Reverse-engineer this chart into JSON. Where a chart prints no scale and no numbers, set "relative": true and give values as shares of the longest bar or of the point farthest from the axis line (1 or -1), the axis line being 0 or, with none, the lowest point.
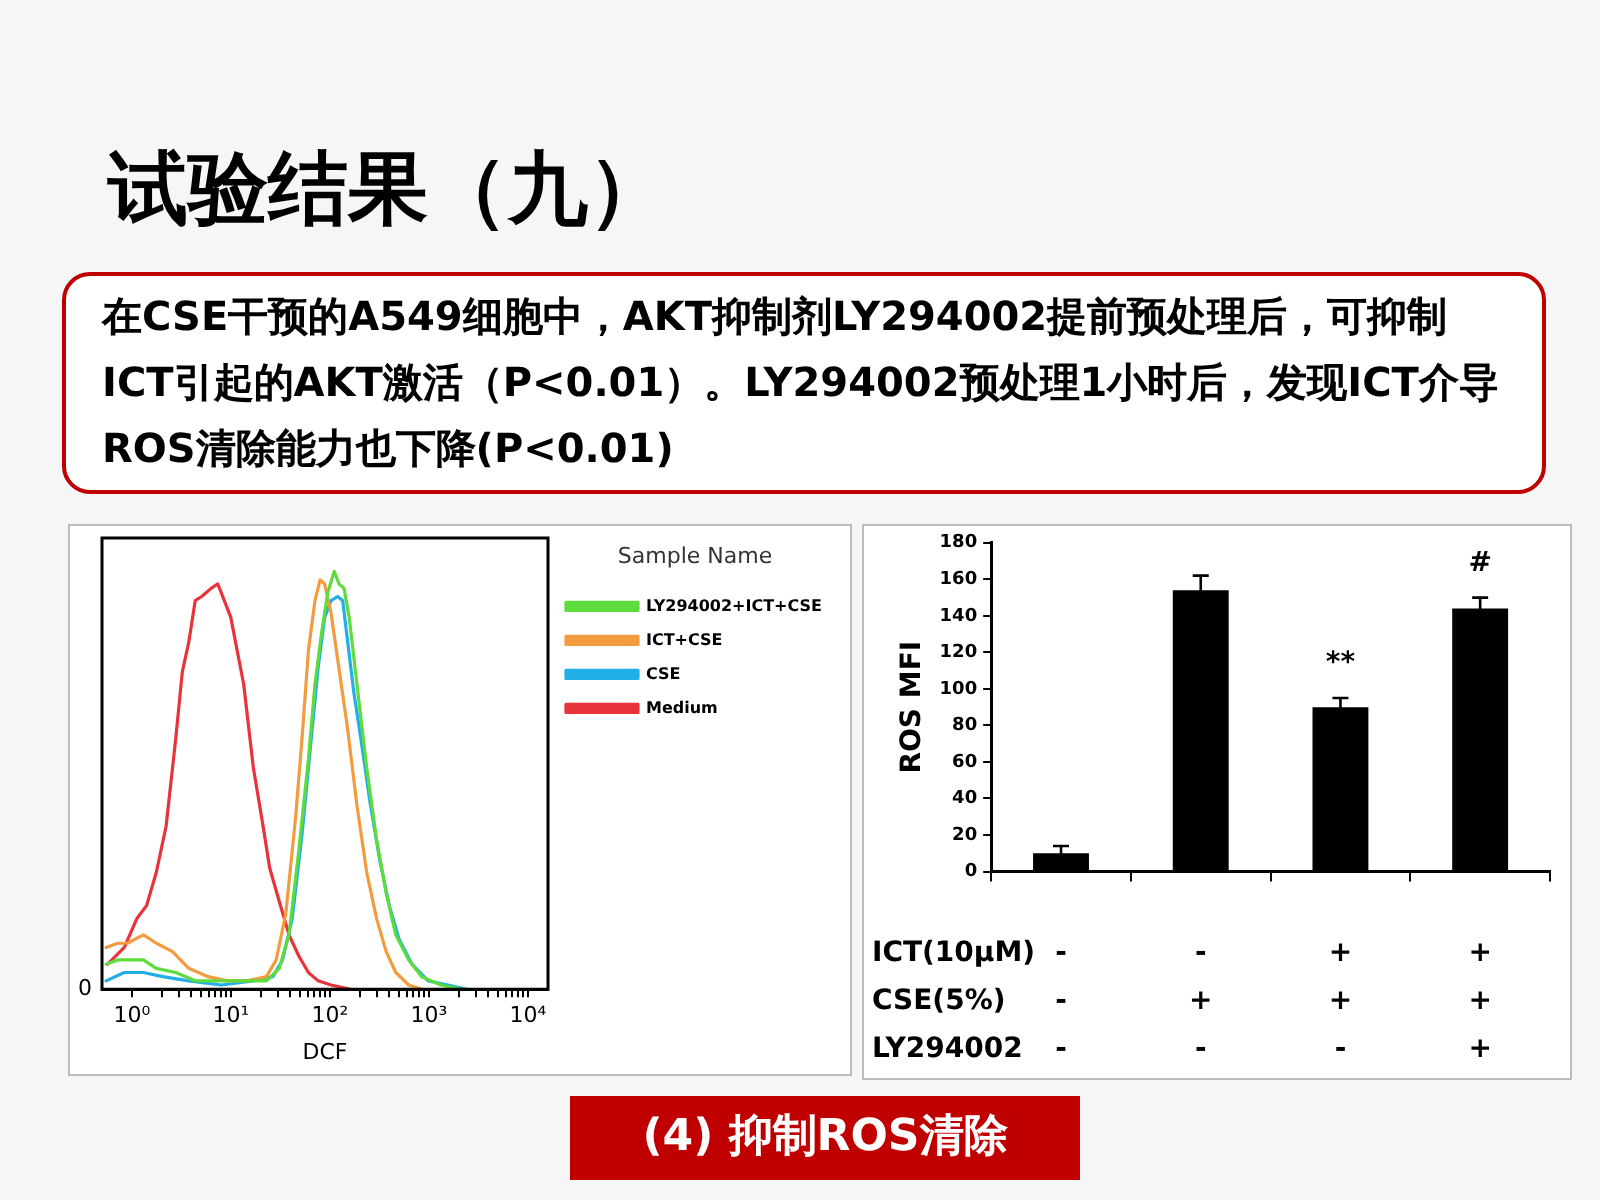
{
  "chart_data": [
    {
      "type": "line",
      "title": "试验结果（九）",
      "subtitle": "在CSE干预的A549细胞中，AKT抑制剂LY294002提前预处理后，可抑制ICT引起的AKT激活（P<0.01）。LY294002预处理1小时后，发现ICT介导ROS清除能力也下降(P<0.01)",
      "xlabel": "DCF",
      "legend_title": "Sample Name",
      "legend": "right",
      "log": "x",
      "relative": true,
      "marker": "none",
      "line_style": "solid",
      "xlim": [
        0.5,
        16000
      ],
      "xticks": [
        {
          "value": 1,
          "label": "10⁰"
        },
        {
          "value": 2,
          "label": null
        },
        {
          "value": 3,
          "label": null
        },
        {
          "value": 4,
          "label": null
        },
        {
          "value": 5,
          "label": null
        },
        {
          "value": 6,
          "label": null
        },
        {
          "value": 7,
          "label": null
        },
        {
          "value": 8,
          "label": null
        },
        {
          "value": 9,
          "label": null
        },
        {
          "value": 10,
          "label": "10¹"
        },
        {
          "value": 20,
          "label": null
        },
        {
          "value": 30,
          "label": null
        },
        {
          "value": 40,
          "label": null
        },
        {
          "value": 50,
          "label": null
        },
        {
          "value": 60,
          "label": null
        },
        {
          "value": 70,
          "label": null
        },
        {
          "value": 80,
          "label": null
        },
        {
          "value": 90,
          "label": null
        },
        {
          "value": 100,
          "label": "10²"
        },
        {
          "value": 200,
          "label": null
        },
        {
          "value": 300,
          "label": null
        },
        {
          "value": 400,
          "label": null
        },
        {
          "value": 500,
          "label": null
        },
        {
          "value": 600,
          "label": null
        },
        {
          "value": 700,
          "label": null
        },
        {
          "value": 800,
          "label": null
        },
        {
          "value": 900,
          "label": null
        },
        {
          "value": 1000,
          "label": "10³"
        },
        {
          "value": 2000,
          "label": null
        },
        {
          "value": 3000,
          "label": null
        },
        {
          "value": 4000,
          "label": null
        },
        {
          "value": 5000,
          "label": null
        },
        {
          "value": 6000,
          "label": null
        },
        {
          "value": 7000,
          "label": null
        },
        {
          "value": 8000,
          "label": null
        },
        {
          "value": 9000,
          "label": null
        },
        {
          "value": 10000,
          "label": "10⁴"
        }
      ],
      "annotations": [
        "0",
        "(4) 抑制ROS清除"
      ],
      "series": [
        {
          "name": "LY294002+ICT+CSE",
          "color": "#5ddc3c",
          "x": [
            0.55,
            0.72,
            0.97,
            1.31,
            1.77,
            2.78,
            4.37,
            7.98,
            14.6,
            22.9,
            30.9,
            38.7,
            48.5,
            60.8,
            70.8,
            82.2,
            95.5,
            111,
            124,
            139,
            157,
            188,
            236,
            296,
            371,
            464,
            627,
            847,
            1330,
            2090
          ],
          "values": [
            0.06,
            0.07,
            0.07,
            0.07,
            0.05,
            0.04,
            0.02,
            0.02,
            0.02,
            0.02,
            0.05,
            0.13,
            0.33,
            0.55,
            0.73,
            0.85,
            0.95,
            1,
            0.97,
            0.96,
            0.89,
            0.73,
            0.53,
            0.36,
            0.23,
            0.13,
            0.07,
            0.03,
            0.01,
            0
          ]
        },
        {
          "name": "ICT+CSE",
          "color": "#f39b3f",
          "x": [
            0.55,
            0.72,
            0.9,
            1.31,
            1.77,
            2.58,
            3.76,
            5.9,
            9.27,
            14.6,
            22.9,
            28.7,
            35.9,
            45.1,
            52.4,
            60.8,
            70.8,
            79.8,
            88.7,
            103,
            120,
            150,
            188,
            236,
            296,
            371,
            464,
            627,
            847
          ],
          "values": [
            0.1,
            0.11,
            0.11,
            0.13,
            0.11,
            0.09,
            0.05,
            0.03,
            0.02,
            0.02,
            0.03,
            0.07,
            0.18,
            0.41,
            0.6,
            0.81,
            0.93,
            0.98,
            0.97,
            0.9,
            0.79,
            0.63,
            0.44,
            0.28,
            0.17,
            0.09,
            0.04,
            0.01,
            0
          ]
        },
        {
          "name": "CSE",
          "color": "#22aee6",
          "x": [
            0.55,
            0.84,
            1.31,
            2.06,
            3.76,
            7.98,
            16.9,
            26.6,
            33.3,
            41.8,
            52.4,
            65.6,
            76.3,
            88.7,
            103,
            120,
            135,
            150,
            175,
            203,
            254,
            319,
            399,
            500,
            676,
            985,
            1550,
            2430
          ],
          "values": [
            0.02,
            0.04,
            0.04,
            0.03,
            0.02,
            0.01,
            0.02,
            0.03,
            0.07,
            0.17,
            0.37,
            0.61,
            0.77,
            0.89,
            0.93,
            0.94,
            0.93,
            0.84,
            0.71,
            0.61,
            0.45,
            0.31,
            0.2,
            0.12,
            0.06,
            0.02,
            0.01,
            0
          ]
        },
        {
          "name": "Medium",
          "color": "#e8333a",
          "x": [
            0.57,
            0.84,
            1.13,
            1.41,
            1.77,
            2.22,
            2.78,
            3.24,
            3.76,
            4.37,
            5.08,
            6.37,
            7.4,
            8.6,
            10,
            11.6,
            13.5,
            16.9,
            21.2,
            24.7,
            30.9,
            38.7,
            48.5,
            60.8,
            76.3,
            103,
            162
          ],
          "values": [
            0.06,
            0.1,
            0.17,
            0.2,
            0.28,
            0.39,
            0.6,
            0.76,
            0.83,
            0.93,
            0.94,
            0.96,
            0.97,
            0.93,
            0.89,
            0.81,
            0.73,
            0.53,
            0.39,
            0.29,
            0.21,
            0.13,
            0.08,
            0.04,
            0.02,
            0.01,
            0
          ]
        }
      ]
    },
    {
      "type": "bar",
      "ylabel": "ROS MFI",
      "categories": [
        "-\n-\n-",
        "-\n+\n-",
        "+\n+\n-",
        "+\n+\n+"
      ],
      "values": [
        10,
        154,
        90,
        144
      ],
      "errors": [
        4,
        8,
        5,
        6
      ],
      "color": "#000000",
      "ylim": [
        0,
        180
      ],
      "yticks": [
        0,
        20,
        40,
        60,
        80,
        100,
        120,
        140,
        160,
        180
      ],
      "annotations": [
        "ICT(10μM)",
        "CSE(5%)",
        "LY294002",
        "**",
        "#"
      ]
    }
  ]
}
